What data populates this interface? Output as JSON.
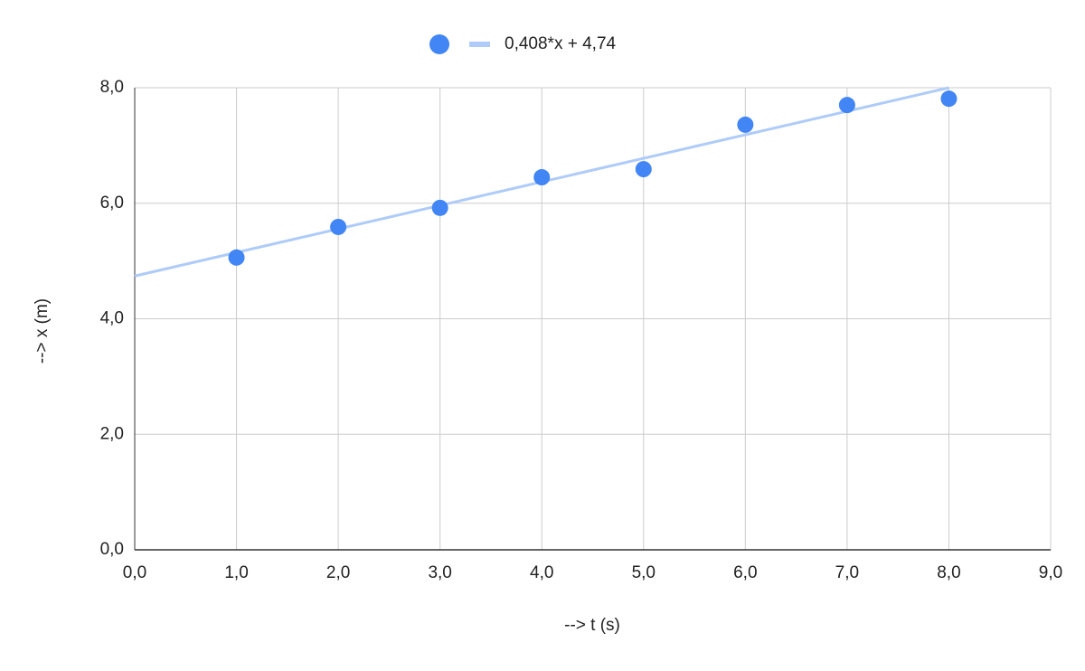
{
  "chart_data": {
    "type": "scatter",
    "x_label": "--> t (s)",
    "y_label": "--> x (m)",
    "xlim": [
      0,
      9
    ],
    "ylim": [
      0,
      8
    ],
    "xticks": [
      {
        "value": 0,
        "label": "0,0"
      },
      {
        "value": 1,
        "label": "1,0"
      },
      {
        "value": 2,
        "label": "2,0"
      },
      {
        "value": 3,
        "label": "3,0"
      },
      {
        "value": 4,
        "label": "4,0"
      },
      {
        "value": 5,
        "label": "5,0"
      },
      {
        "value": 6,
        "label": "6,0"
      },
      {
        "value": 7,
        "label": "7,0"
      },
      {
        "value": 8,
        "label": "8,0"
      },
      {
        "value": 9,
        "label": "9,0"
      }
    ],
    "yticks": [
      {
        "value": 0,
        "label": "0,0"
      },
      {
        "value": 2,
        "label": "2,0"
      },
      {
        "value": 4,
        "label": "4,0"
      },
      {
        "value": 6,
        "label": "6,0"
      },
      {
        "value": 8,
        "label": "8,0"
      }
    ],
    "grid": true,
    "legend": "top",
    "series": [
      {
        "color": "#4285f4",
        "x": [
          1,
          2,
          3,
          4,
          5,
          6,
          7,
          8
        ],
        "values": [
          5.06,
          5.59,
          5.92,
          6.45,
          6.59,
          7.36,
          7.7,
          7.81
        ]
      },
      {
        "name": "0,408*x + 4,74",
        "type": "line",
        "color": "#aecbfa",
        "x": [
          0,
          8
        ],
        "values": [
          4.74,
          8.0
        ]
      }
    ]
  }
}
